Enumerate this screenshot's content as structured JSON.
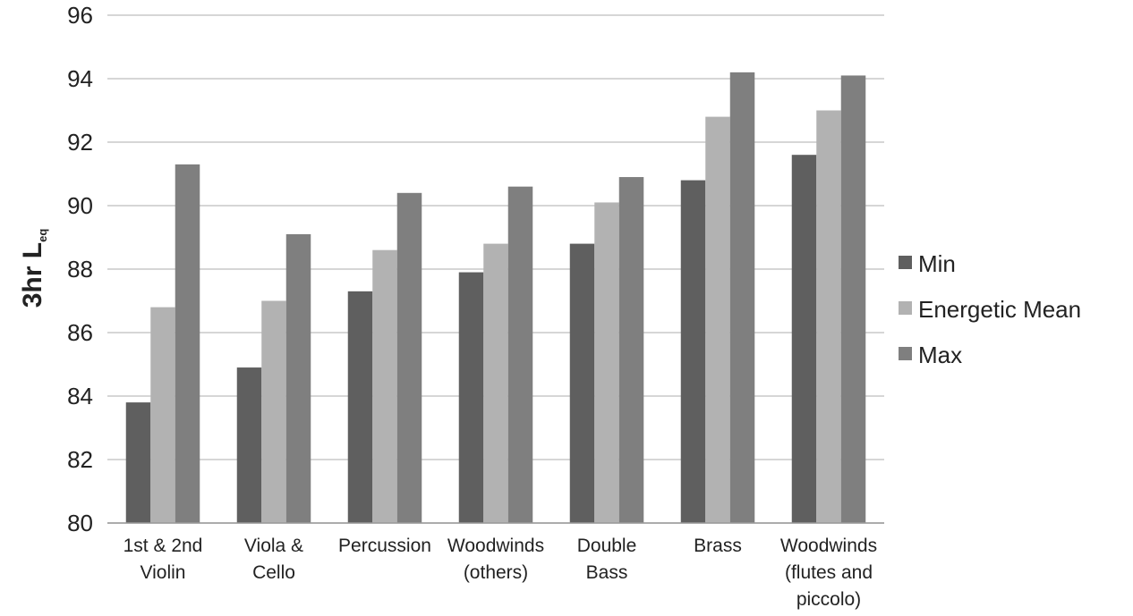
{
  "chart_data": {
    "type": "bar",
    "title": "",
    "xlabel": "",
    "ylabel": "3hr L",
    "ylabel_subscript": "eq",
    "ylim": [
      80,
      96
    ],
    "yticks": [
      80,
      82,
      84,
      86,
      88,
      90,
      92,
      94,
      96
    ],
    "grid": true,
    "legend_position": "right",
    "categories": [
      [
        "1st & 2nd",
        "Violin"
      ],
      [
        "Viola &",
        "Cello"
      ],
      [
        "Percussion"
      ],
      [
        "Woodwinds",
        "(others)"
      ],
      [
        "Double",
        "Bass"
      ],
      [
        "Brass"
      ],
      [
        "Woodwinds",
        "(flutes and",
        "piccolo)"
      ]
    ],
    "series": [
      {
        "name": "Min",
        "color": "#5f5f5f",
        "values": [
          83.8,
          84.9,
          87.3,
          87.9,
          88.8,
          90.8,
          91.6
        ]
      },
      {
        "name": "Energetic Mean",
        "color": "#b2b2b2",
        "values": [
          86.8,
          87.0,
          88.6,
          88.8,
          90.1,
          92.8,
          93.0
        ]
      },
      {
        "name": "Max",
        "color": "#7f7f7f",
        "values": [
          91.3,
          89.1,
          90.4,
          90.6,
          90.9,
          94.2,
          94.1
        ]
      }
    ]
  }
}
